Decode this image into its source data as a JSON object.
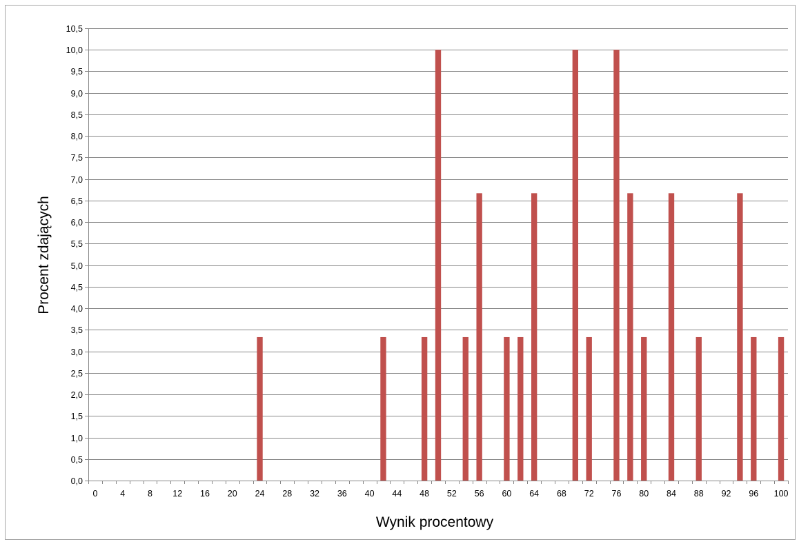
{
  "chart_data": {
    "type": "bar",
    "title": "",
    "xlabel": "Wynik procentowy",
    "ylabel": "Procent zdających",
    "ylim": [
      0,
      10.5
    ],
    "y_ticks": [
      "0,0",
      "0,5",
      "1,0",
      "1,5",
      "2,0",
      "2,5",
      "3,0",
      "3,5",
      "4,0",
      "4,5",
      "5,0",
      "5,5",
      "6,0",
      "6,5",
      "7,0",
      "7,5",
      "8,0",
      "8,5",
      "9,0",
      "9,5",
      "10,0",
      "10,5"
    ],
    "x_tick_labels": [
      "0",
      "4",
      "8",
      "12",
      "16",
      "20",
      "24",
      "28",
      "32",
      "36",
      "40",
      "44",
      "48",
      "52",
      "56",
      "60",
      "64",
      "68",
      "72",
      "76",
      "80",
      "84",
      "88",
      "92",
      "96",
      "100"
    ],
    "x_categories": [
      0,
      2,
      4,
      6,
      8,
      10,
      12,
      14,
      16,
      18,
      20,
      22,
      24,
      26,
      28,
      30,
      32,
      34,
      36,
      38,
      40,
      42,
      44,
      46,
      48,
      50,
      52,
      54,
      56,
      58,
      60,
      62,
      64,
      66,
      68,
      70,
      72,
      74,
      76,
      78,
      80,
      82,
      84,
      86,
      88,
      90,
      92,
      94,
      96,
      98,
      100
    ],
    "values": [
      0,
      0,
      0,
      0,
      0,
      0,
      0,
      0,
      0,
      0,
      0,
      0,
      3.33,
      0,
      0,
      0,
      0,
      0,
      0,
      0,
      0,
      3.33,
      0,
      0,
      3.33,
      10.0,
      0,
      3.33,
      6.67,
      0,
      3.33,
      3.33,
      6.67,
      0,
      0,
      10.0,
      3.33,
      0,
      10.0,
      6.67,
      3.33,
      0,
      6.67,
      0,
      3.33,
      0,
      0,
      6.67,
      3.33,
      0,
      3.33
    ],
    "bar_color": "#c0504d",
    "grid": true,
    "gridline_color": "#868686",
    "legend": "none"
  }
}
